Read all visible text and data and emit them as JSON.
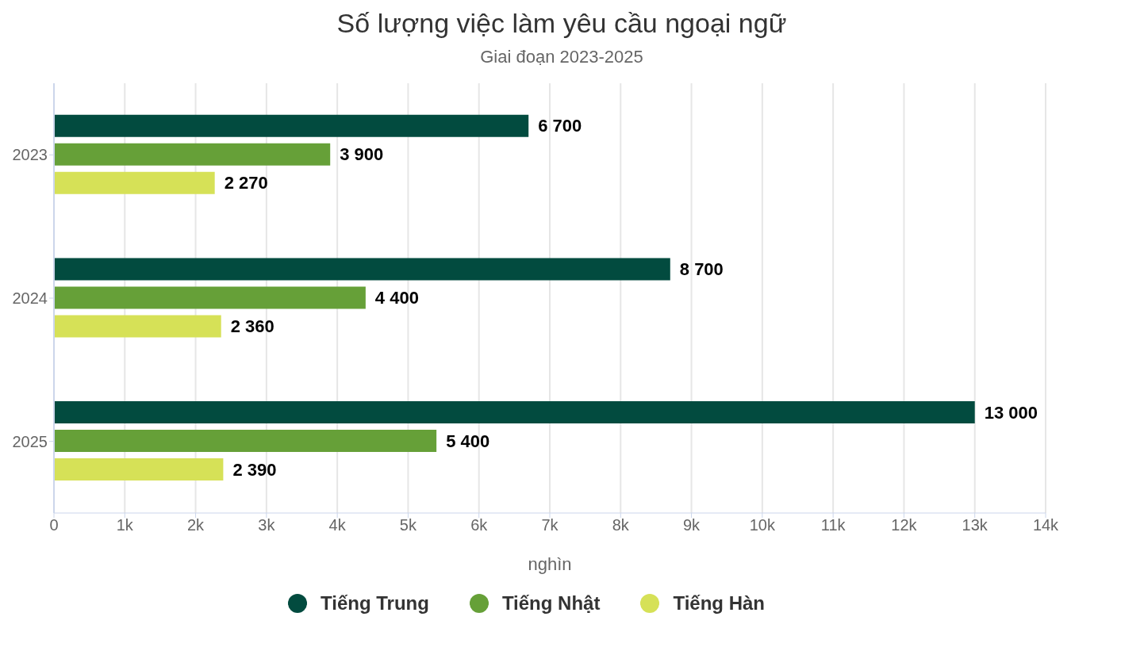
{
  "chart_data": {
    "type": "bar",
    "orientation": "horizontal",
    "title": "Số lượng việc làm yêu cầu ngoại ngữ",
    "subtitle": "Giai đoạn 2023-2025",
    "xlabel": "nghìn",
    "categories": [
      "2023",
      "2024",
      "2025"
    ],
    "series": [
      {
        "name": "Tiếng Trung",
        "color": "#024b3f",
        "values": [
          6700,
          8700,
          13000
        ],
        "value_labels": [
          "6 700",
          "8 700",
          "13 000"
        ]
      },
      {
        "name": "Tiếng Nhật",
        "color": "#66a038",
        "values": [
          3900,
          4400,
          5400
        ],
        "value_labels": [
          "3 900",
          "4 400",
          "5 400"
        ]
      },
      {
        "name": "Tiếng Hàn",
        "color": "#d6e157",
        "values": [
          2270,
          2360,
          2390
        ],
        "value_labels": [
          "2 270",
          "2 360",
          "2 390"
        ]
      }
    ],
    "xlim": [
      0,
      14000
    ],
    "xticks": [
      0,
      {
        "value": 1000,
        "label": "1k"
      },
      {
        "value": 2000,
        "label": "2k"
      },
      {
        "value": 3000,
        "label": "3k"
      },
      {
        "value": 4000,
        "label": "4k"
      },
      {
        "value": 5000,
        "label": "5k"
      },
      {
        "value": 6000,
        "label": "6k"
      },
      {
        "value": 7000,
        "label": "7k"
      },
      {
        "value": 8000,
        "label": "8k"
      },
      {
        "value": 9000,
        "label": "9k"
      },
      {
        "value": 10000,
        "label": "10k"
      },
      {
        "value": 11000,
        "label": "11k"
      },
      {
        "value": 12000,
        "label": "12k"
      },
      {
        "value": 13000,
        "label": "13k"
      },
      {
        "value": 14000,
        "label": "14k"
      }
    ],
    "grid": "x",
    "legend": "bottom",
    "marker": "circle"
  }
}
